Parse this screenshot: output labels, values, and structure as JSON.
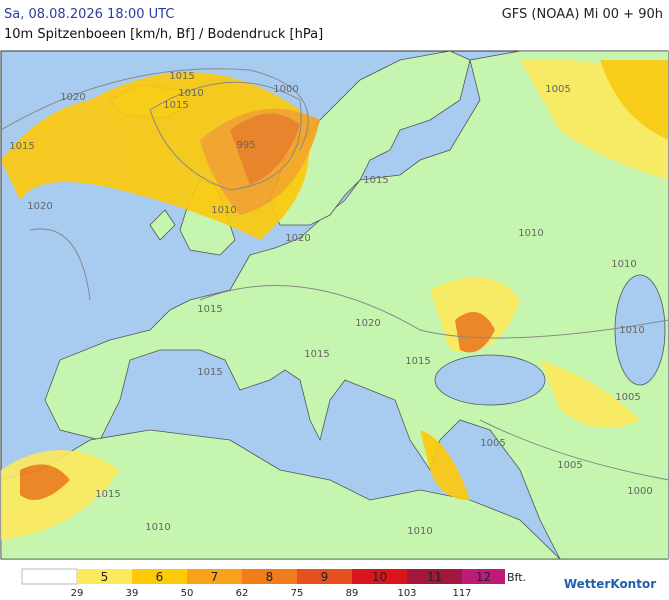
{
  "header": {
    "datetime": "Sa, 08.08.2026 18:00 UTC",
    "model": "GFS (NOAA) Mi 00 + 90h",
    "subtitle": "10m Spitzenboeen [km/h, Bf] / Bodendruck [hPa]"
  },
  "map": {
    "isobar_labels": [
      "1020",
      "1015",
      "1010",
      "1015",
      "1000",
      "995",
      "1015",
      "1020",
      "1010",
      "1015",
      "1010",
      "1005",
      "1010",
      "1020",
      "1015",
      "1020",
      "1015",
      "1010",
      "1015",
      "1015",
      "1005",
      "1005",
      "1005",
      "1000",
      "1015",
      "1010",
      "1010"
    ]
  },
  "legend": {
    "zero_color": "#ffffff",
    "classes": [
      {
        "label": "5",
        "color": "#fde95c"
      },
      {
        "label": "6",
        "color": "#fdc90a"
      },
      {
        "label": "7",
        "color": "#f8a21c"
      },
      {
        "label": "8",
        "color": "#f07c1a"
      },
      {
        "label": "9",
        "color": "#e6501e"
      },
      {
        "label": "10",
        "color": "#d8161c"
      },
      {
        "label": "11",
        "color": "#a3163e"
      },
      {
        "label": "12",
        "color": "#c01a78"
      }
    ],
    "thresholds": [
      29,
      39,
      50,
      62,
      75,
      89,
      103,
      117
    ],
    "unit": "Bft."
  },
  "brand": "WetterKontor"
}
